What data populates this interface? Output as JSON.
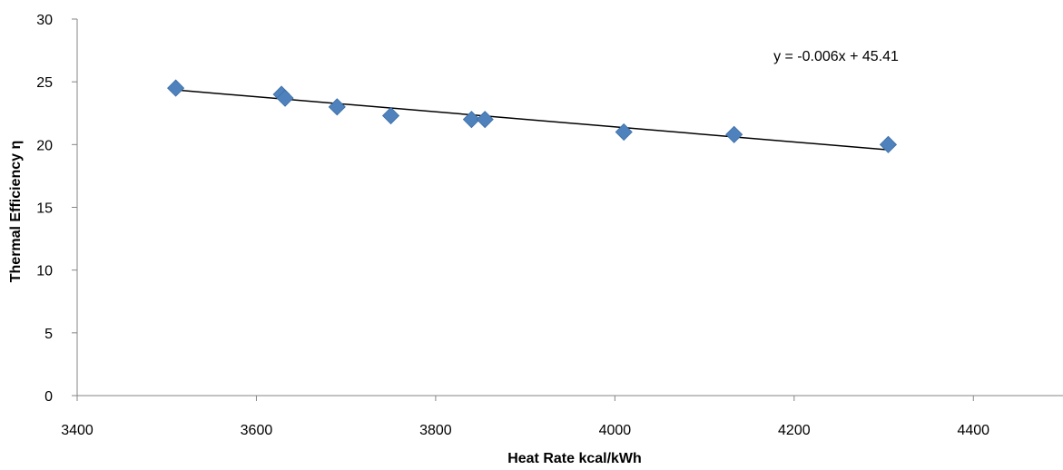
{
  "chart_data": {
    "type": "scatter",
    "title": "",
    "xlabel": "Heat Rate kcal/kWh",
    "ylabel": "Thermal Efficiency η",
    "xlim": [
      3400,
      4500
    ],
    "ylim": [
      0,
      30
    ],
    "x_ticks": [
      "3400",
      "3600",
      "3800",
      "4000",
      "4200",
      "4400"
    ],
    "y_ticks": [
      "0",
      "5",
      "10",
      "15",
      "20",
      "25",
      "30"
    ],
    "grid": false,
    "legend": "none",
    "series": [
      {
        "color": "#4f81bd",
        "marker": "diamond",
        "points": [
          {
            "x": 3510,
            "y": 24.5
          },
          {
            "x": 3628,
            "y": 24.0
          },
          {
            "x": 3632,
            "y": 23.7
          },
          {
            "x": 3690,
            "y": 23.0
          },
          {
            "x": 3750,
            "y": 22.3
          },
          {
            "x": 3840,
            "y": 22.0
          },
          {
            "x": 3855,
            "y": 22.0
          },
          {
            "x": 4010,
            "y": 21.0
          },
          {
            "x": 4133,
            "y": 20.8
          },
          {
            "x": 4305,
            "y": 20.0
          }
        ]
      }
    ],
    "trendline": {
      "equation": "y = -0.006x + 45.41",
      "slope": -0.006,
      "intercept": 45.41,
      "x_start": 3510,
      "x_end": 4305,
      "color": "#000000"
    }
  }
}
